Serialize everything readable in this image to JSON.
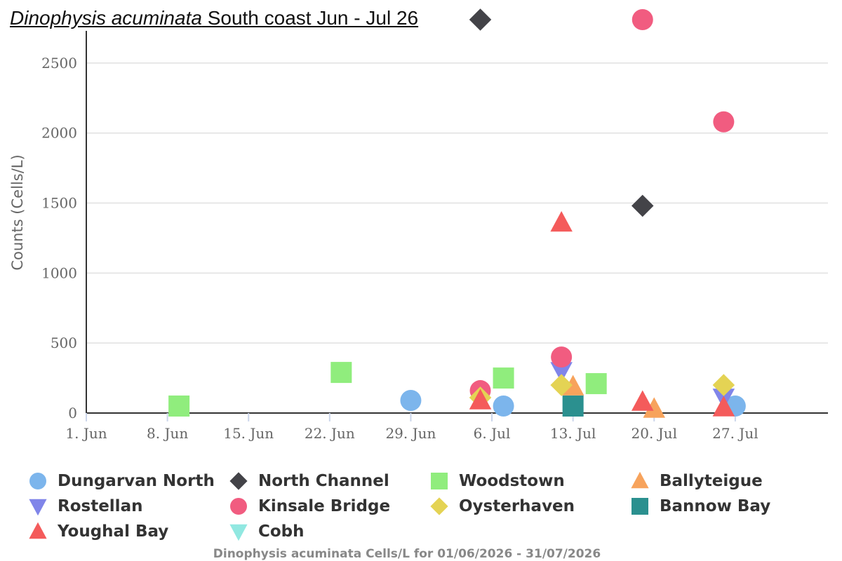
{
  "chart_data": {
    "type": "scatter",
    "title_italic": "Dinophysis acuminata",
    "title_rest": " South coast Jun - Jul 26",
    "ylabel": "Counts (Cells/L)",
    "xlabel": "",
    "caption": "Dinophysis acuminata Cells/L for 01/06/2026 - 31/07/2026",
    "x_type": "date",
    "x_range": [
      "2026-06-01",
      "2026-08-04"
    ],
    "y_range": [
      0,
      2850
    ],
    "y_ticks": [
      0,
      500,
      1000,
      1500,
      2000,
      2500
    ],
    "x_ticks": [
      {
        "date": "2026-06-01",
        "label": "1. Jun"
      },
      {
        "date": "2026-06-08",
        "label": "8. Jun"
      },
      {
        "date": "2026-06-15",
        "label": "15. Jun"
      },
      {
        "date": "2026-06-22",
        "label": "22. Jun"
      },
      {
        "date": "2026-06-29",
        "label": "29. Jun"
      },
      {
        "date": "2026-07-06",
        "label": "6. Jul"
      },
      {
        "date": "2026-07-13",
        "label": "13. Jul"
      },
      {
        "date": "2026-07-20",
        "label": "20. Jul"
      },
      {
        "date": "2026-07-27",
        "label": "27. Jul"
      }
    ],
    "grid": true,
    "legend_position": "bottom",
    "series": [
      {
        "name": "Dungarvan North",
        "color": "#7cb5ec",
        "symbol": "circle",
        "points": [
          [
            "2026-06-29",
            90
          ],
          [
            "2026-07-07",
            50
          ],
          [
            "2026-07-27",
            50
          ]
        ]
      },
      {
        "name": "North Channel",
        "color": "#434348",
        "symbol": "diamond",
        "points": [
          [
            "2026-07-05",
            2940
          ],
          [
            "2026-07-19",
            1480
          ]
        ]
      },
      {
        "name": "Woodstown",
        "color": "#90ed7d",
        "symbol": "square",
        "points": [
          [
            "2026-06-09",
            50
          ],
          [
            "2026-06-23",
            290
          ],
          [
            "2026-07-07",
            250
          ],
          [
            "2026-07-15",
            210
          ]
        ]
      },
      {
        "name": "Ballyteigue",
        "color": "#f7a35c",
        "symbol": "triangle",
        "points": [
          [
            "2026-07-13",
            190
          ],
          [
            "2026-07-20",
            30
          ]
        ]
      },
      {
        "name": "Rostellan",
        "color": "#8085e9",
        "symbol": "triangle-down",
        "points": [
          [
            "2026-07-12",
            300
          ],
          [
            "2026-07-26",
            110
          ]
        ]
      },
      {
        "name": "Kinsale Bridge",
        "color": "#f15c80",
        "symbol": "circle",
        "points": [
          [
            "2026-07-05",
            160
          ],
          [
            "2026-07-12",
            400
          ],
          [
            "2026-07-19",
            2940
          ],
          [
            "2026-07-26",
            2080
          ]
        ]
      },
      {
        "name": "Oysterhaven",
        "color": "#e4d354",
        "symbol": "diamond",
        "points": [
          [
            "2026-07-05",
            110
          ],
          [
            "2026-07-12",
            200
          ],
          [
            "2026-07-26",
            200
          ]
        ]
      },
      {
        "name": "Bannow Bay",
        "color": "#2b908f",
        "symbol": "square",
        "points": [
          [
            "2026-07-13",
            50
          ]
        ]
      },
      {
        "name": "Youghal Bay",
        "color": "#f45b5b",
        "symbol": "triangle",
        "points": [
          [
            "2026-07-05",
            90
          ],
          [
            "2026-07-12",
            1360
          ],
          [
            "2026-07-19",
            80
          ],
          [
            "2026-07-26",
            40
          ]
        ]
      },
      {
        "name": "Cobh",
        "color": "#91e8e1",
        "symbol": "triangle-down",
        "points": []
      }
    ]
  }
}
